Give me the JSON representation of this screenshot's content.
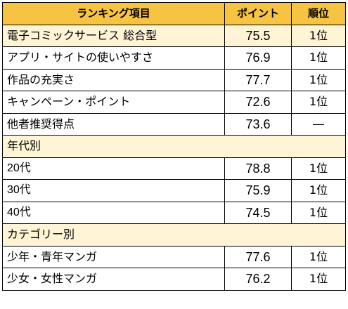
{
  "header": {
    "item": "ランキング項目",
    "point": "ポイント",
    "rank": "順位"
  },
  "rows": [
    {
      "item": "電子コミックサービス 総合型",
      "point": "75.5",
      "rank": "1位"
    },
    {
      "item": "アプリ・サイトの使いやすさ",
      "point": "76.9",
      "rank": "1位"
    },
    {
      "item": "作品の充実さ",
      "point": "77.7",
      "rank": "1位"
    },
    {
      "item": "キャンペーン・ポイント",
      "point": "72.6",
      "rank": "1位"
    },
    {
      "item": "他者推奨得点",
      "point": "73.6",
      "rank": "―"
    }
  ],
  "section_age": {
    "title": "年代別",
    "rows": [
      {
        "item": "20代",
        "point": "78.8",
        "rank": "1位"
      },
      {
        "item": "30代",
        "point": "75.9",
        "rank": "1位"
      },
      {
        "item": "40代",
        "point": "74.5",
        "rank": "1位"
      }
    ]
  },
  "section_category": {
    "title": "カテゴリー別",
    "rows": [
      {
        "item": "少年・青年マンガ",
        "point": "77.6",
        "rank": "1位"
      },
      {
        "item": "少女・女性マンガ",
        "point": "76.2",
        "rank": "1位"
      }
    ]
  },
  "colors": {
    "header_bg": "#f7c342",
    "highlight_bg": "#fff5d6",
    "border": "#000000"
  }
}
